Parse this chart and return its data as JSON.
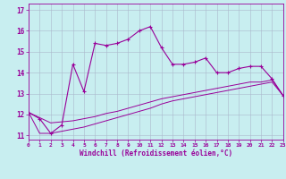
{
  "xlabel": "Windchill (Refroidissement éolien,°C)",
  "bg_color": "#c8eef0",
  "line_color": "#990099",
  "grid_color": "#aab8cc",
  "x_hours": [
    0,
    1,
    2,
    3,
    4,
    5,
    6,
    7,
    8,
    9,
    10,
    11,
    12,
    13,
    14,
    15,
    16,
    17,
    18,
    19,
    20,
    21,
    22,
    23
  ],
  "temp_line": [
    12.1,
    11.8,
    11.1,
    11.5,
    14.4,
    13.1,
    15.4,
    15.3,
    15.4,
    15.6,
    16.0,
    16.2,
    15.2,
    14.4,
    14.4,
    14.5,
    14.7,
    14.0,
    14.0,
    14.2,
    14.3,
    14.3,
    13.7,
    12.9
  ],
  "line2": [
    12.1,
    11.85,
    11.6,
    11.65,
    11.7,
    11.8,
    11.9,
    12.05,
    12.15,
    12.3,
    12.45,
    12.6,
    12.75,
    12.85,
    12.95,
    13.05,
    13.15,
    13.25,
    13.35,
    13.45,
    13.55,
    13.55,
    13.65,
    12.9
  ],
  "line3": [
    12.1,
    11.1,
    11.1,
    11.2,
    11.3,
    11.4,
    11.55,
    11.7,
    11.85,
    12.0,
    12.15,
    12.3,
    12.5,
    12.65,
    12.75,
    12.85,
    12.95,
    13.05,
    13.15,
    13.25,
    13.35,
    13.45,
    13.55,
    12.9
  ],
  "xlim": [
    0,
    23
  ],
  "ylim": [
    10.8,
    17.3
  ],
  "yticks": [
    11,
    12,
    13,
    14,
    15,
    16,
    17
  ],
  "xticks": [
    0,
    1,
    2,
    3,
    4,
    5,
    6,
    7,
    8,
    9,
    10,
    11,
    12,
    13,
    14,
    15,
    16,
    17,
    18,
    19,
    20,
    21,
    22,
    23
  ]
}
